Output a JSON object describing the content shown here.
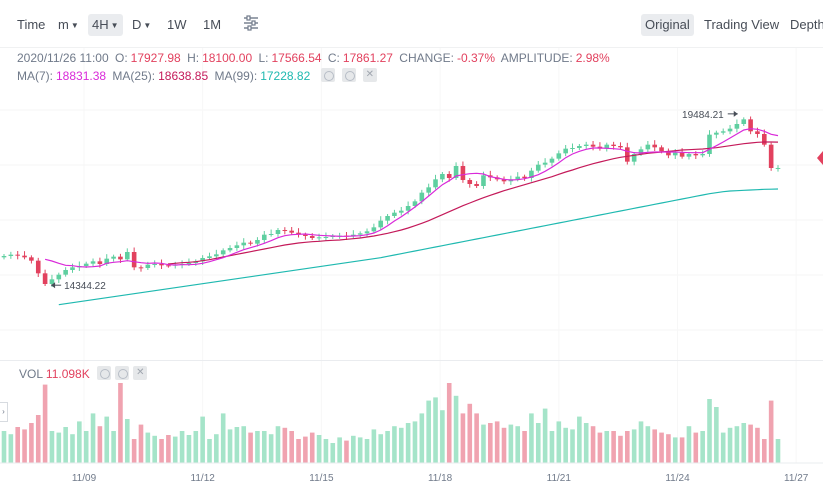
{
  "toolbar": {
    "time": "Time",
    "minutes": "m",
    "four_hour": "4H",
    "day": "D",
    "week": "1W",
    "month": "1M",
    "original": "Original",
    "trading_view": "Trading View",
    "depth": "Depth"
  },
  "ohlc": {
    "date": "2020/11/26 11:00",
    "o_label": "O:",
    "o": "17927.98",
    "h_label": "H:",
    "h": "18100.00",
    "l_label": "L:",
    "l": "17566.54",
    "c_label": "C:",
    "c": "17861.27",
    "change_label": "CHANGE:",
    "change": "-0.37%",
    "amp_label": "AMPLITUDE:",
    "amp": "2.98%"
  },
  "ma": {
    "ma7_label": "MA(7):",
    "ma7": "18831.38",
    "ma25_label": "MA(25):",
    "ma25": "18638.85",
    "ma99_label": "MA(99):",
    "ma99": "17228.82"
  },
  "volume": {
    "label": "VOL",
    "value": "11.098K"
  },
  "colors": {
    "up": "#5fcfa0",
    "down": "#e2415e",
    "vol_up": "#a5e4c9",
    "vol_down": "#f0a3b0",
    "ma7": "#d92ad9",
    "ma25": "#c41a5a",
    "ma99": "#1fb9b0",
    "accent": "#e2415e"
  },
  "icons": [
    "chart-settings-icon",
    "eye-icon",
    "gear-icon",
    "close-icon"
  ],
  "chart_data": {
    "type": "candlestick",
    "x_ticks": [
      "11/09",
      "11/12",
      "11/15",
      "11/18",
      "11/21",
      "11/24",
      "11/27"
    ],
    "ylim": [
      12700,
      20200
    ],
    "annotations": [
      {
        "text": "19484.21",
        "value": 19484.21
      },
      {
        "text": "14344.22",
        "value": 14344.22
      }
    ],
    "close": [
      15220,
      15260,
      15230,
      15180,
      15080,
      14700,
      14380,
      14520,
      14660,
      14800,
      14880,
      14920,
      14990,
      15060,
      14980,
      15140,
      15200,
      15120,
      15340,
      14880,
      14860,
      14960,
      14980,
      14940,
      14930,
      14960,
      14980,
      15010,
      15060,
      15160,
      15210,
      15270,
      15390,
      15460,
      15540,
      15620,
      15590,
      15700,
      15860,
      15880,
      16000,
      15980,
      15920,
      15860,
      15820,
      15760,
      15780,
      15790,
      15820,
      15830,
      15810,
      15860,
      15900,
      15960,
      16080,
      16280,
      16420,
      16520,
      16580,
      16720,
      16860,
      17120,
      17280,
      17520,
      17680,
      17560,
      17920,
      17500,
      17380,
      17320,
      17640,
      17580,
      17520,
      17460,
      17520,
      17600,
      17560,
      17780,
      17960,
      18020,
      18140,
      18300,
      18440,
      18460,
      18520,
      18560,
      18500,
      18440,
      18560,
      18520,
      18480,
      18050,
      18280,
      18420,
      18560,
      18480,
      18360,
      18240,
      18320,
      18200,
      18280,
      18240,
      18280,
      18860,
      18920,
      18960,
      19040,
      19180,
      19320,
      18960,
      18880,
      18560,
      17860,
      17861
    ],
    "ma7": [
      null,
      null,
      null,
      null,
      null,
      null,
      15120,
      15070,
      15000,
      14940,
      14930,
      14900,
      14890,
      14900,
      14920,
      15000,
      15030,
      15050,
      15080,
      15050,
      15020,
      15000,
      15010,
      15000,
      14960,
      14950,
      14960,
      14960,
      14970,
      15000,
      15050,
      15110,
      15170,
      15250,
      15330,
      15410,
      15470,
      15530,
      15600,
      15680,
      15770,
      15830,
      15860,
      15870,
      15880,
      15860,
      15840,
      15830,
      15820,
      15810,
      15810,
      15820,
      15830,
      15860,
      15910,
      16000,
      16130,
      16270,
      16400,
      16540,
      16690,
      16850,
      17020,
      17190,
      17360,
      17480,
      17620,
      17660,
      17690,
      17700,
      17680,
      17600,
      17560,
      17520,
      17500,
      17510,
      17540,
      17590,
      17660,
      17760,
      17880,
      18020,
      18170,
      18280,
      18360,
      18420,
      18460,
      18460,
      18450,
      18440,
      18420,
      18360,
      18320,
      18310,
      18330,
      18340,
      18340,
      18340,
      18340,
      18330,
      18320,
      18320,
      18320,
      18420,
      18530,
      18640,
      18760,
      18880,
      19000,
      19040,
      19020,
      18960,
      18870,
      18831
    ],
    "ma25": [
      null,
      null,
      null,
      null,
      null,
      null,
      null,
      null,
      null,
      null,
      null,
      null,
      null,
      null,
      null,
      null,
      null,
      null,
      null,
      null,
      null,
      null,
      null,
      null,
      14980,
      15000,
      15020,
      15030,
      15050,
      15080,
      15110,
      15150,
      15190,
      15230,
      15270,
      15310,
      15350,
      15390,
      15430,
      15470,
      15510,
      15550,
      15580,
      15610,
      15630,
      15650,
      15660,
      15680,
      15690,
      15700,
      15720,
      15740,
      15760,
      15790,
      15820,
      15860,
      15900,
      15950,
      16000,
      16060,
      16130,
      16200,
      16280,
      16370,
      16460,
      16550,
      16640,
      16730,
      16810,
      16890,
      16970,
      17040,
      17110,
      17180,
      17240,
      17300,
      17360,
      17420,
      17480,
      17540,
      17600,
      17670,
      17740,
      17800,
      17870,
      17930,
      17990,
      18040,
      18090,
      18140,
      18180,
      18210,
      18240,
      18270,
      18300,
      18320,
      18340,
      18360,
      18380,
      18400,
      18410,
      18420,
      18430,
      18450,
      18470,
      18500,
      18530,
      18560,
      18590,
      18610,
      18630,
      18640,
      18640,
      18638
    ],
    "ma99": [
      null,
      null,
      null,
      null,
      null,
      null,
      null,
      null,
      13760,
      13790,
      13820,
      13850,
      13880,
      13910,
      13940,
      13970,
      14000,
      14030,
      14060,
      14090,
      14120,
      14150,
      14180,
      14210,
      14240,
      14270,
      14300,
      14330,
      14360,
      14390,
      14420,
      14450,
      14480,
      14510,
      14540,
      14570,
      14600,
      14630,
      14660,
      14690,
      14720,
      14750,
      14780,
      14810,
      14840,
      14870,
      14900,
      14930,
      14960,
      14990,
      15020,
      15050,
      15080,
      15110,
      15140,
      15170,
      15210,
      15250,
      15290,
      15330,
      15370,
      15410,
      15450,
      15490,
      15530,
      15570,
      15610,
      15650,
      15690,
      15730,
      15770,
      15810,
      15850,
      15890,
      15930,
      15970,
      16010,
      16050,
      16090,
      16130,
      16170,
      16210,
      16250,
      16290,
      16330,
      16370,
      16410,
      16450,
      16490,
      16530,
      16570,
      16610,
      16650,
      16690,
      16730,
      16770,
      16810,
      16850,
      16890,
      16930,
      16970,
      17010,
      17050,
      17090,
      17120,
      17150,
      17170,
      17180,
      17190,
      17200,
      17210,
      17220,
      17225,
      17228.82
    ],
    "volume": [
      40,
      36,
      45,
      42,
      50,
      60,
      98,
      40,
      38,
      45,
      36,
      52,
      40,
      62,
      46,
      58,
      40,
      100,
      55,
      30,
      48,
      38,
      34,
      30,
      35,
      33,
      40,
      35,
      40,
      58,
      30,
      36,
      62,
      42,
      45,
      46,
      38,
      40,
      40,
      36,
      46,
      44,
      40,
      30,
      33,
      38,
      35,
      30,
      25,
      32,
      28,
      34,
      32,
      30,
      42,
      36,
      40,
      46,
      44,
      50,
      52,
      62,
      78,
      82,
      66,
      100,
      84,
      62,
      74,
      62,
      48,
      50,
      52,
      44,
      48,
      46,
      40,
      62,
      50,
      68,
      40,
      52,
      44,
      42,
      58,
      50,
      46,
      38,
      40,
      40,
      34,
      40,
      42,
      52,
      46,
      42,
      38,
      36,
      32,
      32,
      46,
      38,
      40,
      80,
      70,
      38,
      44,
      46,
      50,
      48,
      44,
      30,
      78,
      30
    ]
  }
}
